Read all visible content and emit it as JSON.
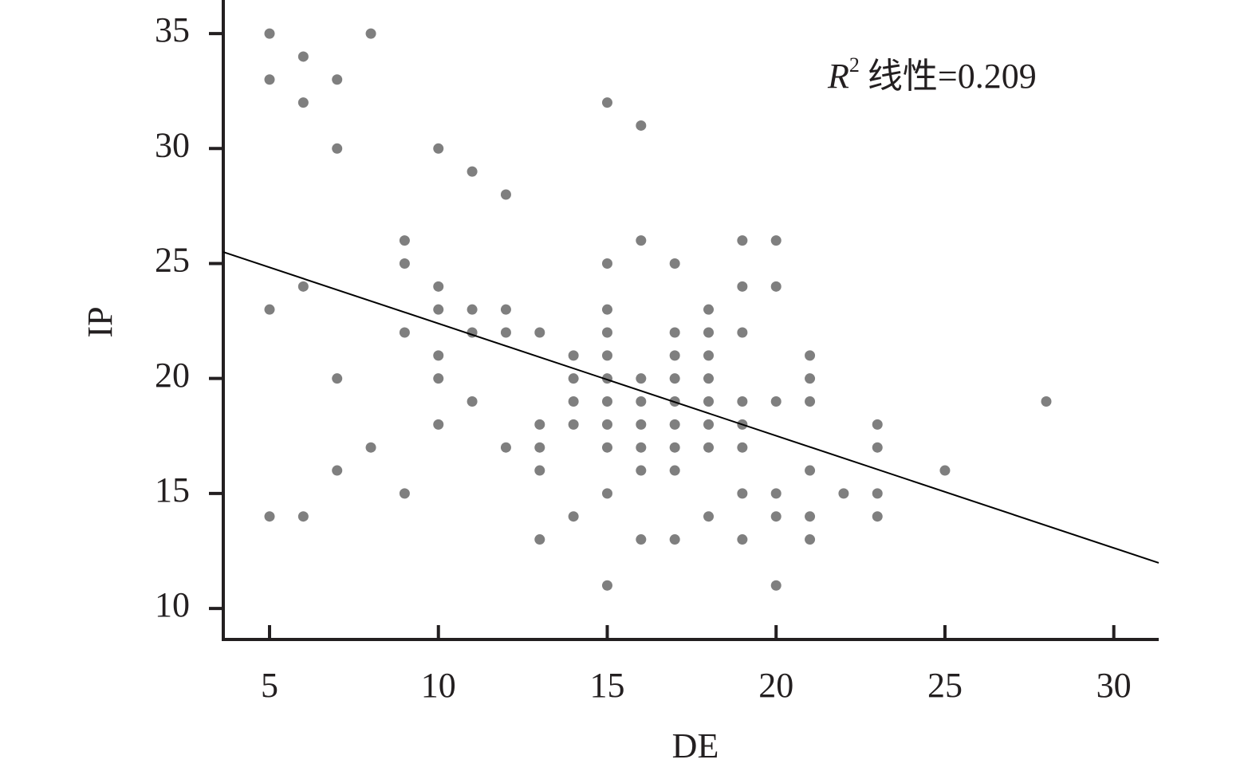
{
  "chart_data": {
    "type": "scatter",
    "x_label": "DE",
    "y_label": "IP",
    "annotation": {
      "symbol": "R",
      "superscript": "2",
      "text": "线性=0.209"
    },
    "color": "#7f7f7f",
    "x": [
      5,
      5,
      5,
      5,
      6,
      6,
      6,
      6,
      7,
      7,
      7,
      7,
      8,
      8,
      9,
      9,
      9,
      9,
      10,
      10,
      10,
      10,
      10,
      10,
      11,
      11,
      11,
      11,
      12,
      12,
      12,
      12,
      13,
      13,
      13,
      13,
      13,
      14,
      14,
      14,
      14,
      14,
      15,
      15,
      15,
      15,
      15,
      15,
      15,
      15,
      15,
      15,
      15,
      16,
      16,
      16,
      16,
      16,
      16,
      16,
      16,
      17,
      17,
      17,
      17,
      17,
      17,
      17,
      17,
      17,
      18,
      18,
      18,
      18,
      18,
      18,
      18,
      18,
      19,
      19,
      19,
      19,
      19,
      19,
      19,
      19,
      20,
      20,
      20,
      20,
      20,
      20,
      21,
      21,
      21,
      21,
      21,
      21,
      22,
      23,
      23,
      23,
      23,
      25,
      28
    ],
    "values": [
      35,
      33,
      23,
      14,
      34,
      32,
      24,
      14,
      33,
      30,
      20,
      16,
      35,
      17,
      26,
      25,
      22,
      15,
      30,
      24,
      23,
      21,
      20,
      18,
      29,
      23,
      22,
      19,
      28,
      23,
      22,
      17,
      22,
      18,
      17,
      16,
      13,
      21,
      20,
      19,
      18,
      14,
      32,
      25,
      23,
      22,
      21,
      20,
      19,
      18,
      17,
      15,
      11,
      31,
      26,
      20,
      19,
      18,
      17,
      16,
      13,
      25,
      22,
      21,
      20,
      19,
      18,
      17,
      16,
      13,
      23,
      22,
      21,
      20,
      19,
      18,
      17,
      14,
      26,
      24,
      22,
      19,
      18,
      17,
      15,
      13,
      26,
      24,
      19,
      15,
      14,
      11,
      21,
      20,
      19,
      16,
      14,
      13,
      15,
      18,
      17,
      15,
      14,
      16,
      19
    ],
    "trend_line": {
      "x": [
        3.63,
        31.33
      ],
      "values": [
        25.5,
        11.98
      ],
      "color": "#000000"
    },
    "xlim": [
      3.63,
      31.33
    ],
    "ylim": [
      8.65,
      36.46
    ],
    "xticks": [
      5,
      10,
      15,
      20,
      25,
      30
    ],
    "yticks": [
      10,
      15,
      20,
      25,
      30,
      35
    ]
  }
}
